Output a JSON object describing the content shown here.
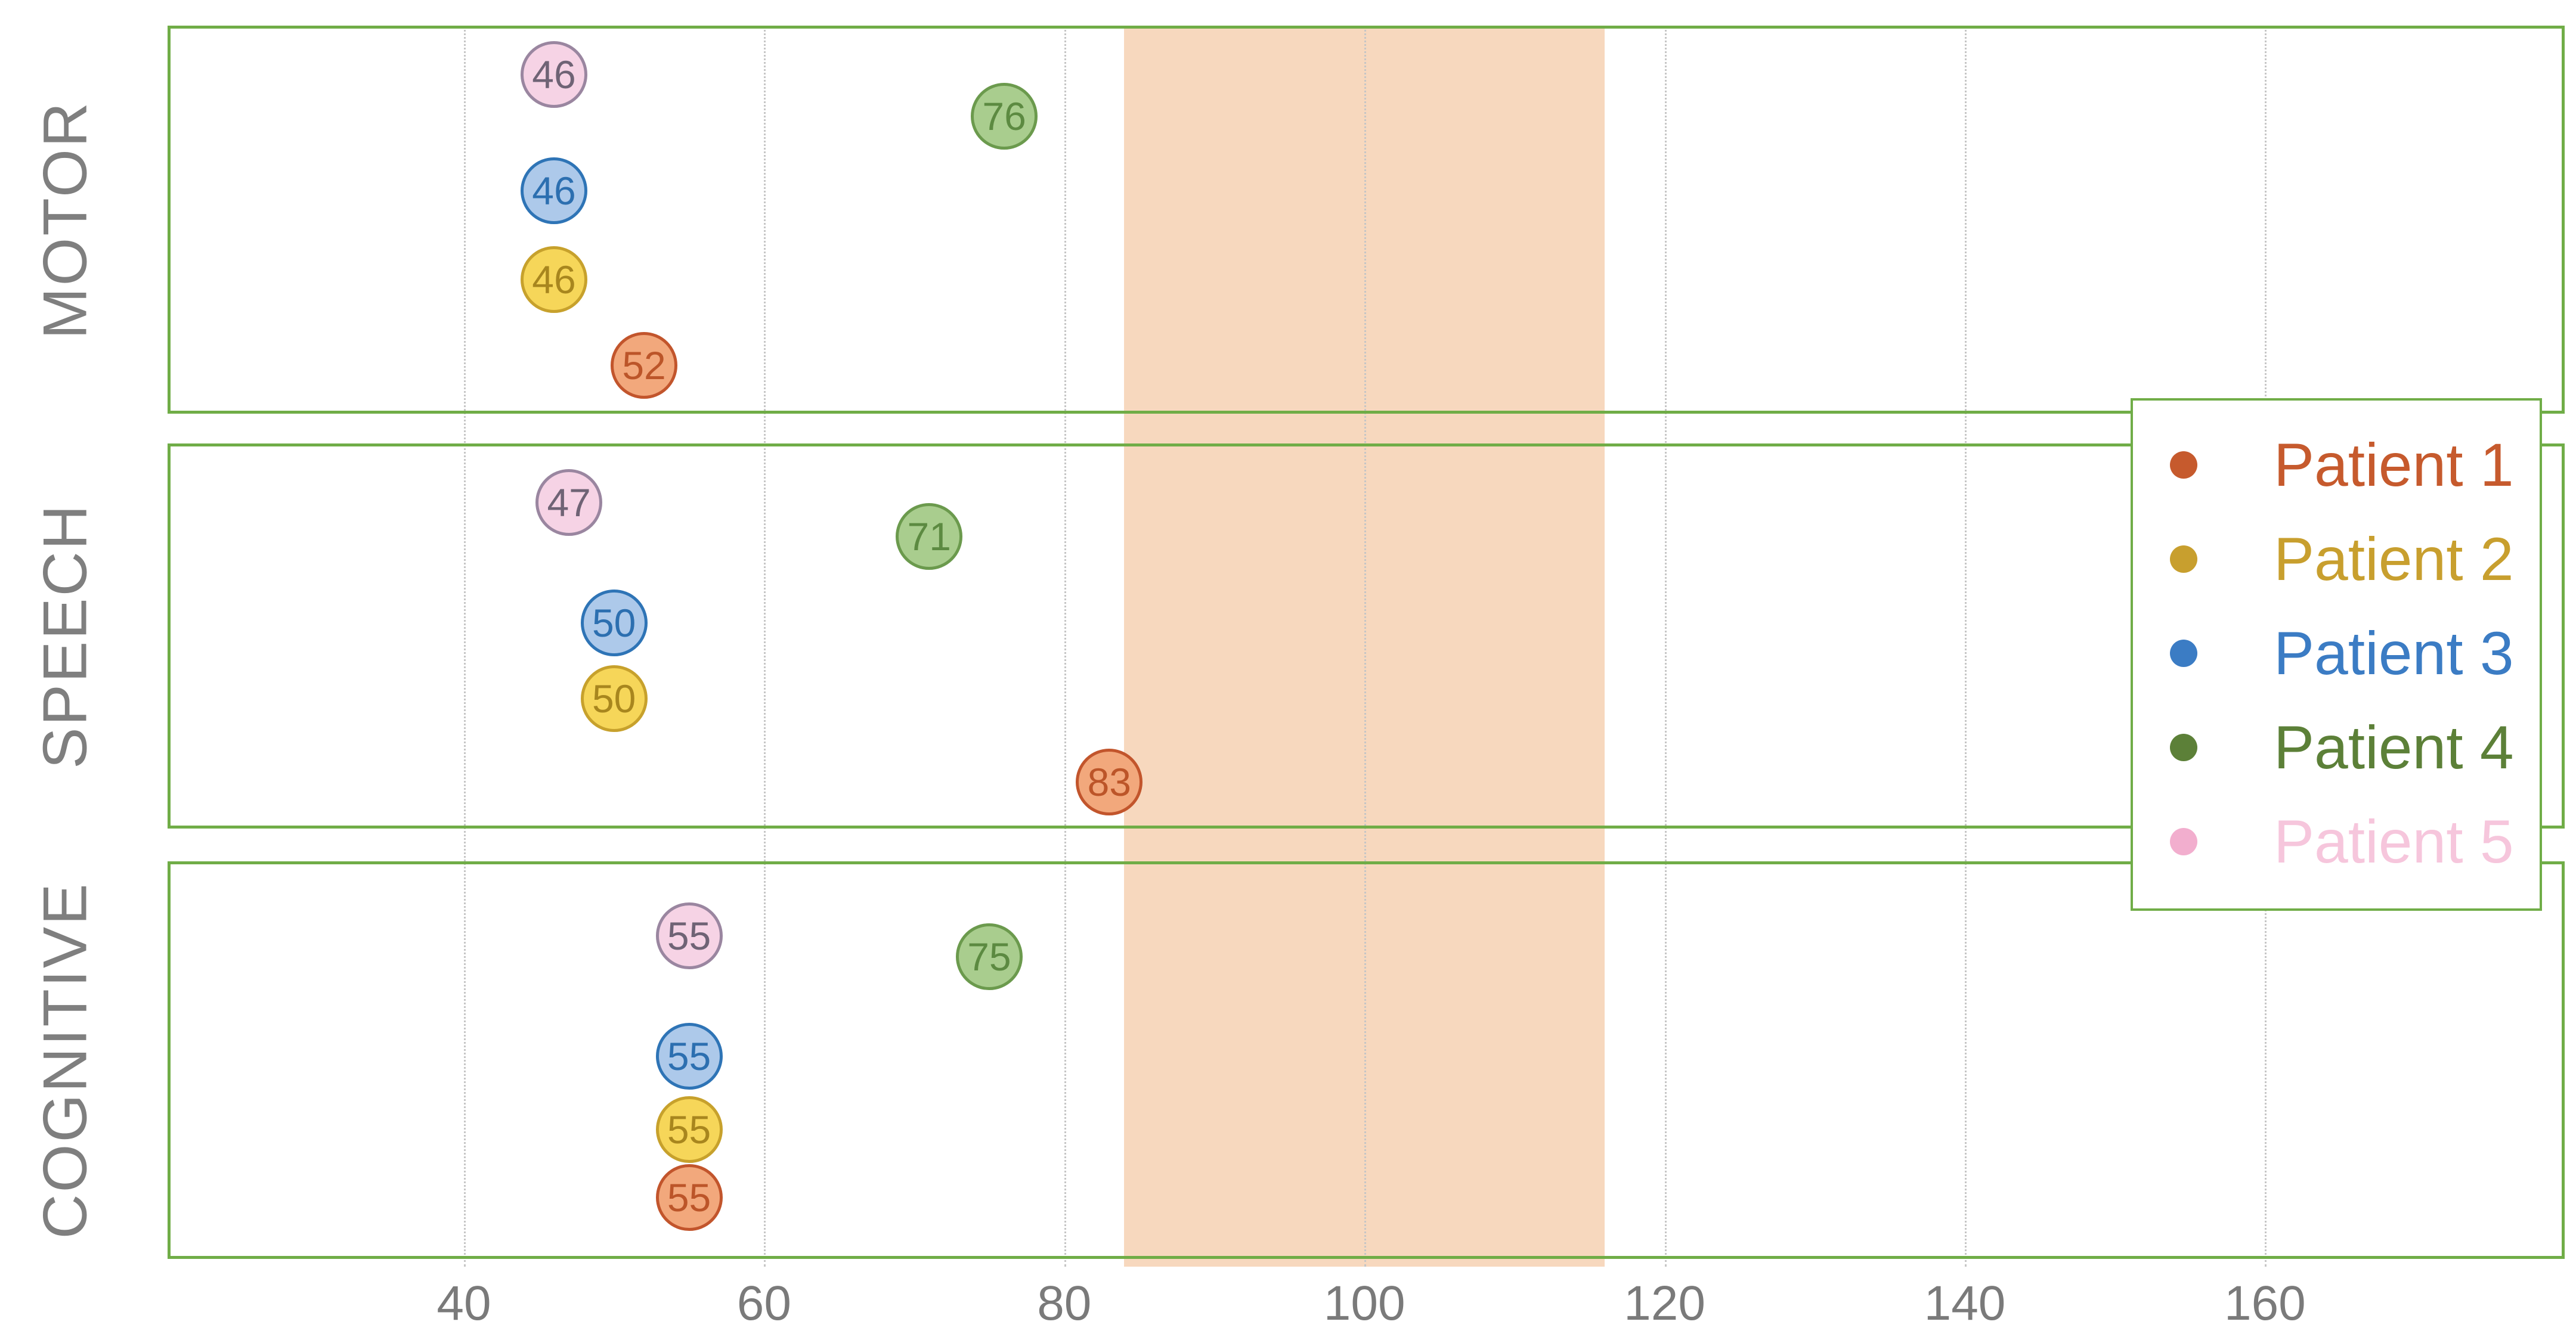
{
  "chart_data": {
    "type": "scatter",
    "title": "",
    "categories": [
      "MOTOR",
      "SPEECH",
      "COGNITIVE"
    ],
    "x_axis": {
      "ticks": [
        40,
        60,
        80,
        100,
        120,
        140,
        160
      ],
      "xlim": [
        20,
        180
      ],
      "grid": "dotted-vertical"
    },
    "reference_band": {
      "from": 84,
      "to": 116,
      "color": "#F7D8BE"
    },
    "legend_position": "right",
    "series": [
      {
        "name": "Patient 1",
        "values": {
          "MOTOR": 52,
          "SPEECH": 83,
          "COGNITIVE": 55
        },
        "fill": "#F2A87C",
        "stroke": "#C2552C",
        "text_color": "#BC5529",
        "legend_color": "#C65A2D",
        "dot_color": "#C65A2D"
      },
      {
        "name": "Patient 2",
        "values": {
          "MOTOR": 46,
          "SPEECH": 50,
          "COGNITIVE": 55
        },
        "fill": "#F6D659",
        "stroke": "#C7A12C",
        "text_color": "#A8861E",
        "legend_color": "#C89F2E",
        "dot_color": "#C89F2E"
      },
      {
        "name": "Patient 3",
        "values": {
          "MOTOR": 46,
          "SPEECH": 50,
          "COGNITIVE": 55
        },
        "fill": "#ADC9EA",
        "stroke": "#2E74B6",
        "text_color": "#2C6FB0",
        "legend_color": "#3B7CC4",
        "dot_color": "#3B7CC4"
      },
      {
        "name": "Patient 4",
        "values": {
          "MOTOR": 76,
          "SPEECH": 71,
          "COGNITIVE": 75
        },
        "fill": "#A9CD8E",
        "stroke": "#6B9A4D",
        "text_color": "#5C8A41",
        "legend_color": "#5C8038",
        "dot_color": "#5C8038"
      },
      {
        "name": "Patient 5",
        "values": {
          "MOTOR": 46,
          "SPEECH": 47,
          "COGNITIVE": 55
        },
        "fill": "#F6D3E5",
        "stroke": "#9A86A0",
        "text_color": "#6F6375",
        "legend_color": "#F6C6DC",
        "dot_color": "#F2AECE"
      }
    ],
    "layout_hints": {
      "row_border_color": "#70AD47",
      "row_jitter_fraction": {
        "MOTOR": {
          "Patient 1": 0.875,
          "Patient 2": 0.655,
          "Patient 3": 0.425,
          "Patient 4": 0.234,
          "Patient 5": 0.126
        },
        "SPEECH": {
          "Patient 1": 0.879,
          "Patient 2": 0.662,
          "Patient 3": 0.466,
          "Patient 4": 0.242,
          "Patient 5": 0.154
        },
        "COGNITIVE": {
          "Patient 1": 0.845,
          "Patient 2": 0.675,
          "Patient 3": 0.49,
          "Patient 4": 0.24,
          "Patient 5": 0.188
        }
      }
    }
  }
}
